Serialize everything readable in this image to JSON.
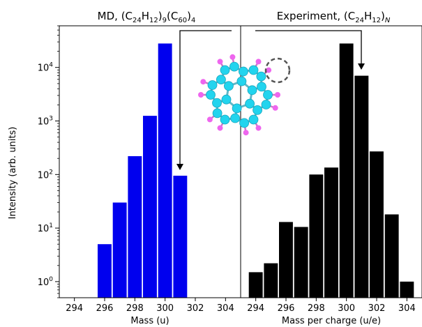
{
  "chart_data": [
    {
      "type": "bar",
      "panel": "left",
      "title": {
        "main": "MD, (C",
        "s1": "24",
        "m2": "H",
        "s2": "12",
        "m3": ")",
        "s3": "9",
        "m4": "(C",
        "s4": "60",
        "m5": ")",
        "s5": "4"
      },
      "xlabel": "Mass (u)",
      "ylabel": "Intensity (arb. units)",
      "yscale": "log",
      "ylim": [
        0.5,
        60000
      ],
      "xlim": [
        293,
        305
      ],
      "xticks": [
        "294",
        "296",
        "298",
        "300",
        "302",
        "304"
      ],
      "bar_color": "#0000ee",
      "x": [
        296,
        297,
        298,
        299,
        300,
        301
      ],
      "values": [
        5,
        30,
        220,
        1250,
        28000,
        95
      ]
    },
    {
      "type": "bar",
      "panel": "right",
      "title": {
        "main": "Experiment, (C",
        "s1": "24",
        "m2": "H",
        "s2": "12",
        "m3": ")",
        "s3": "N"
      },
      "xlabel": "Mass per charge (u/e)",
      "yscale": "log",
      "ylim": [
        0.5,
        60000
      ],
      "xlim": [
        293,
        305
      ],
      "xticks": [
        "294",
        "296",
        "298",
        "300",
        "302",
        "304"
      ],
      "bar_color": "#000000",
      "x": [
        294,
        295,
        296,
        297,
        298,
        299,
        300,
        301,
        302,
        303,
        304
      ],
      "values": [
        1.5,
        2.2,
        13,
        10.5,
        100,
        135,
        28000,
        7000,
        270,
        18,
        1
      ]
    }
  ],
  "y_ticks": [
    {
      "base": "10",
      "exp": "0",
      "value": 1
    },
    {
      "base": "10",
      "exp": "1",
      "value": 10
    },
    {
      "base": "10",
      "exp": "2",
      "value": 100
    },
    {
      "base": "10",
      "exp": "3",
      "value": 1000
    },
    {
      "base": "10",
      "exp": "4",
      "value": 10000
    }
  ],
  "inset": {
    "carbon_color": "#22d4ee",
    "hydrogen_color": "#ee66ee"
  }
}
